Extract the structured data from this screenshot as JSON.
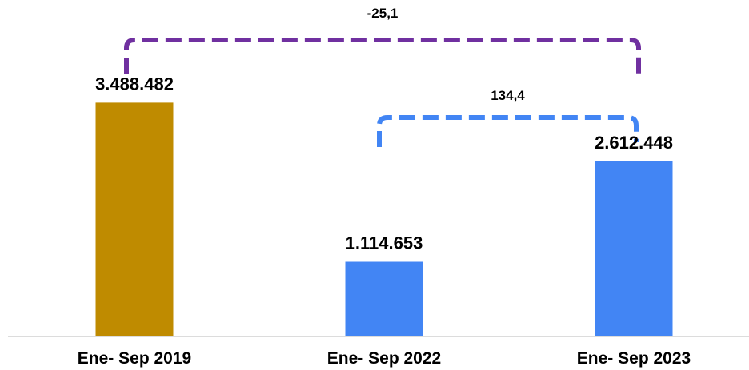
{
  "chart_data": {
    "type": "bar",
    "categories": [
      "Ene- Sep 2019",
      "Ene- Sep 2022",
      "Ene- Sep 2023"
    ],
    "values": [
      3488482,
      1114653,
      2612448
    ],
    "value_labels": [
      "3.488.482",
      "1.114.653",
      "2.612.448"
    ],
    "bar_colors": [
      "#BF8B00",
      "#4285F4",
      "#4285F4"
    ],
    "ylim": [
      0,
      4900000
    ],
    "grid": false,
    "annotations": [
      {
        "label": "-25,1",
        "from": 0,
        "to": 2,
        "color": "#7030A0"
      },
      {
        "label": "134,4",
        "from": 1,
        "to": 2,
        "color": "#4285F4"
      }
    ]
  }
}
